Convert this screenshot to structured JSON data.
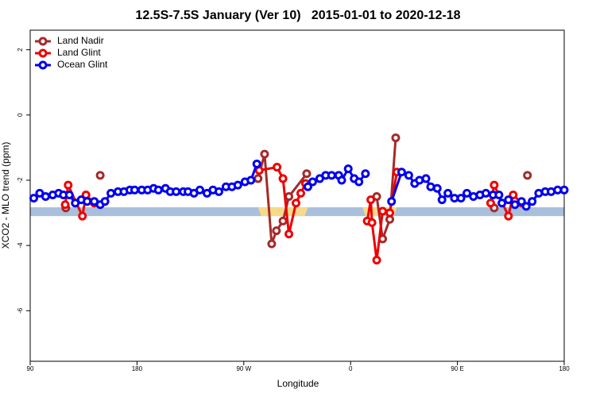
{
  "chart_data": {
    "type": "line",
    "title": "12.5S-7.5S January (Ver 10)   2015-01-01 to 2020-12-18",
    "xlabel": "Longitude",
    "ylabel": "XCO2 - MLO trend (ppm)",
    "xlim": [
      90,
      540
    ],
    "ylim": [
      -7.55,
      2.6
    ],
    "xticks": [
      90,
      180,
      {
        "value": 270,
        "label": "90 W"
      },
      {
        "value": 360,
        "label": "0"
      },
      {
        "value": 450,
        "label": "90 E"
      },
      {
        "value": 540,
        "label": "180"
      }
    ],
    "yticks": [
      -6,
      -4,
      -2,
      0,
      2
    ],
    "legend": "top-left",
    "band": {
      "ylim": [
        -3.1,
        -2.83
      ],
      "color": "#a9bfdc"
    },
    "highlight": {
      "x": [
        [
          282,
          324
        ],
        [
          370,
          399
        ]
      ],
      "color": "#f7d98a"
    },
    "series": [
      {
        "name": "Land Nadir",
        "color": "#a52a2a",
        "x": [
          120,
          null,
          149,
          null,
          282,
          287.5,
          293.5,
          297.5,
          303,
          308,
          323,
          null,
          382,
          387,
          393,
          398,
          null,
          481,
          null,
          509
        ],
        "values": [
          -2.85,
          null,
          -1.85,
          null,
          -1.95,
          -1.2,
          -3.95,
          -3.55,
          -3.25,
          -2.5,
          -1.8,
          null,
          -2.5,
          -3.8,
          -3.2,
          -0.7,
          null,
          -2.85,
          null,
          -1.85
        ]
      },
      {
        "name": "Land Glint",
        "color": "#ee0000",
        "x": [
          119.5,
          122,
          134,
          137,
          144,
          null,
          283,
          298,
          303,
          308,
          314,
          318,
          322,
          null,
          374,
          377,
          378,
          382,
          387,
          393,
          399,
          null,
          478,
          481,
          493,
          497,
          504
        ],
        "values": [
          -2.75,
          -2.15,
          -3.1,
          -2.45,
          -2.7,
          null,
          -1.7,
          -1.6,
          -1.95,
          -3.65,
          -2.7,
          -2.4,
          -2.1,
          null,
          -3.25,
          -2.6,
          -3.3,
          -4.45,
          -2.95,
          -3.0,
          -1.75,
          null,
          -2.7,
          -2.15,
          -3.1,
          -2.45,
          -2.7
        ]
      },
      {
        "name": "Ocean Glint",
        "color": "#0000ee",
        "x": [
          93,
          98,
          103,
          109,
          114,
          118,
          123,
          128,
          133,
          138,
          144,
          149,
          153,
          158,
          164,
          169,
          174,
          178,
          184,
          189,
          194,
          198,
          204,
          208,
          213,
          219,
          223,
          228,
          233,
          239,
          244,
          249,
          255,
          260,
          265,
          271,
          276,
          281,
          null,
          324,
          328,
          334,
          339,
          344,
          350,
          352.5,
          358,
          363,
          367,
          372.5,
          null,
          394.5,
          403,
          409,
          414,
          418,
          423.5,
          427.5,
          433,
          437,
          442,
          447.5,
          453,
          458,
          463.5,
          469,
          474,
          480,
          485,
          487.5,
          493,
          498.5,
          504,
          508,
          513,
          518.5,
          524,
          529,
          534.5,
          540
        ],
        "values": [
          -2.55,
          -2.4,
          -2.5,
          -2.45,
          -2.4,
          -2.45,
          -2.45,
          -2.7,
          -2.6,
          -2.65,
          -2.65,
          -2.75,
          -2.65,
          -2.4,
          -2.35,
          -2.35,
          -2.3,
          -2.3,
          -2.3,
          -2.3,
          -2.25,
          -2.3,
          -2.25,
          -2.35,
          -2.35,
          -2.35,
          -2.35,
          -2.4,
          -2.3,
          -2.4,
          -2.3,
          -2.35,
          -2.2,
          -2.2,
          -2.15,
          -2.05,
          -2.0,
          -1.5,
          null,
          -2.2,
          -2.05,
          -1.95,
          -1.85,
          -1.85,
          -1.85,
          -2.0,
          -1.65,
          -1.95,
          -2.05,
          -1.8,
          null,
          -2.65,
          -1.75,
          -1.85,
          -2.1,
          -2.0,
          -1.95,
          -2.2,
          -2.25,
          -2.6,
          -2.4,
          -2.55,
          -2.55,
          -2.4,
          -2.5,
          -2.45,
          -2.4,
          -2.45,
          -2.45,
          -2.7,
          -2.6,
          -2.75,
          -2.65,
          -2.8,
          -2.65,
          -2.4,
          -2.35,
          -2.35,
          -2.3,
          -2.3
        ]
      }
    ]
  }
}
